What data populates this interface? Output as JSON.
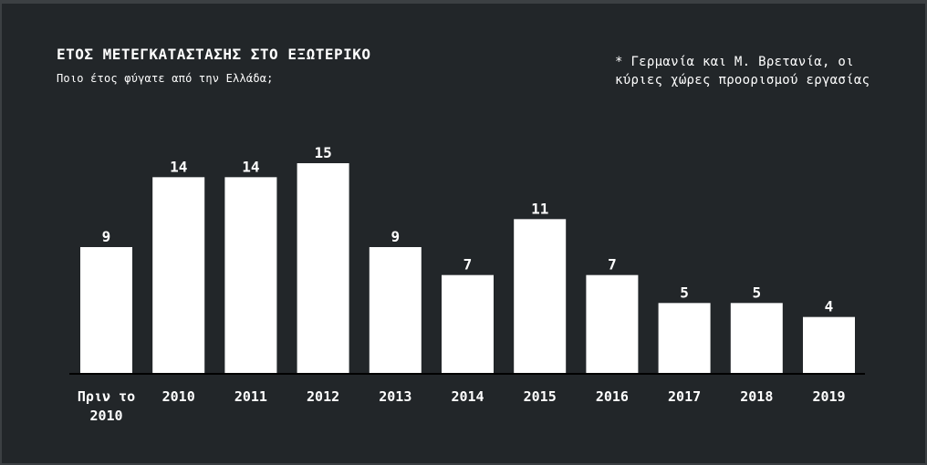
{
  "chart_data": {
    "type": "bar",
    "title": "ΕΤΟΣ ΜΕΤΕΓΚΑΤΑΣΤΑΣΗΣ ΣΤΟ ΕΞΩΤΕΡΙΚΟ",
    "subtitle": "Ποιο έτος φύγατε από την Ελλάδα;",
    "annotation": "* Γερμανία και Μ. Βρετανία, οι κύριες χώρες προορισμού εργασίας",
    "categories": [
      "Πριν το 2010",
      "2010",
      "2011",
      "2012",
      "2013",
      "2014",
      "2015",
      "2016",
      "2017",
      "2018",
      "2019"
    ],
    "values": [
      9,
      14,
      14,
      15,
      9,
      7,
      11,
      7,
      5,
      5,
      4
    ],
    "xlabel": "",
    "ylabel": "",
    "ylim": [
      0,
      15
    ],
    "grid": false,
    "bar_color": "#ffffff",
    "background_color": "#222629"
  }
}
